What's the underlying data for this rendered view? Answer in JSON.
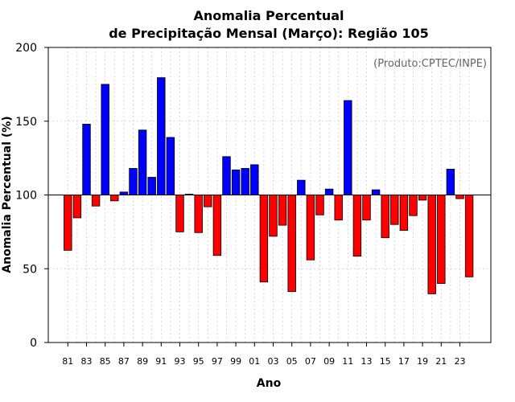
{
  "chart_data": {
    "type": "bar",
    "title_line1": "Anomalia Percentual",
    "title_line2": "de Precipitação Mensal (Março): Região 105",
    "annotation": "(Produto:CPTEC/INPE)",
    "xlabel": "Ano",
    "ylabel": "Anomalia Percentual (%)",
    "ylim": [
      0,
      200
    ],
    "yticks": [
      0,
      50,
      100,
      150,
      200
    ],
    "baseline": 100,
    "grid": true,
    "above_color": "#0000ff",
    "below_color": "#ff0000",
    "categories": [
      "1981",
      "1982",
      "1983",
      "1984",
      "1985",
      "1986",
      "1987",
      "1988",
      "1989",
      "1990",
      "1991",
      "1992",
      "1993",
      "1994",
      "1995",
      "1996",
      "1997",
      "1998",
      "1999",
      "2000",
      "2001",
      "2002",
      "2003",
      "2004",
      "2005",
      "2006",
      "2007",
      "2008",
      "2009",
      "2010",
      "2011",
      "2012",
      "2013",
      "2014",
      "2015",
      "2016",
      "2017",
      "2018",
      "2019",
      "2020",
      "2021",
      "2022",
      "2023",
      "2024"
    ],
    "xtick_labels": [
      "81",
      "83",
      "85",
      "87",
      "89",
      "91",
      "93",
      "95",
      "97",
      "99",
      "01",
      "03",
      "05",
      "07",
      "09",
      "11",
      "13",
      "15",
      "17",
      "19",
      "21",
      "23"
    ],
    "xtick_every": 2,
    "values": [
      62.5,
      84.5,
      148,
      92.5,
      175,
      96,
      102,
      118,
      144,
      112,
      179.5,
      139,
      75,
      100.5,
      74.5,
      92,
      59,
      126,
      117,
      118,
      120.5,
      41,
      72,
      79.5,
      34.5,
      110,
      56,
      86.5,
      104,
      83,
      164,
      58.5,
      83,
      103.5,
      71,
      80,
      76,
      86,
      96.5,
      33,
      40,
      117.5,
      97.5,
      44.5
    ]
  }
}
